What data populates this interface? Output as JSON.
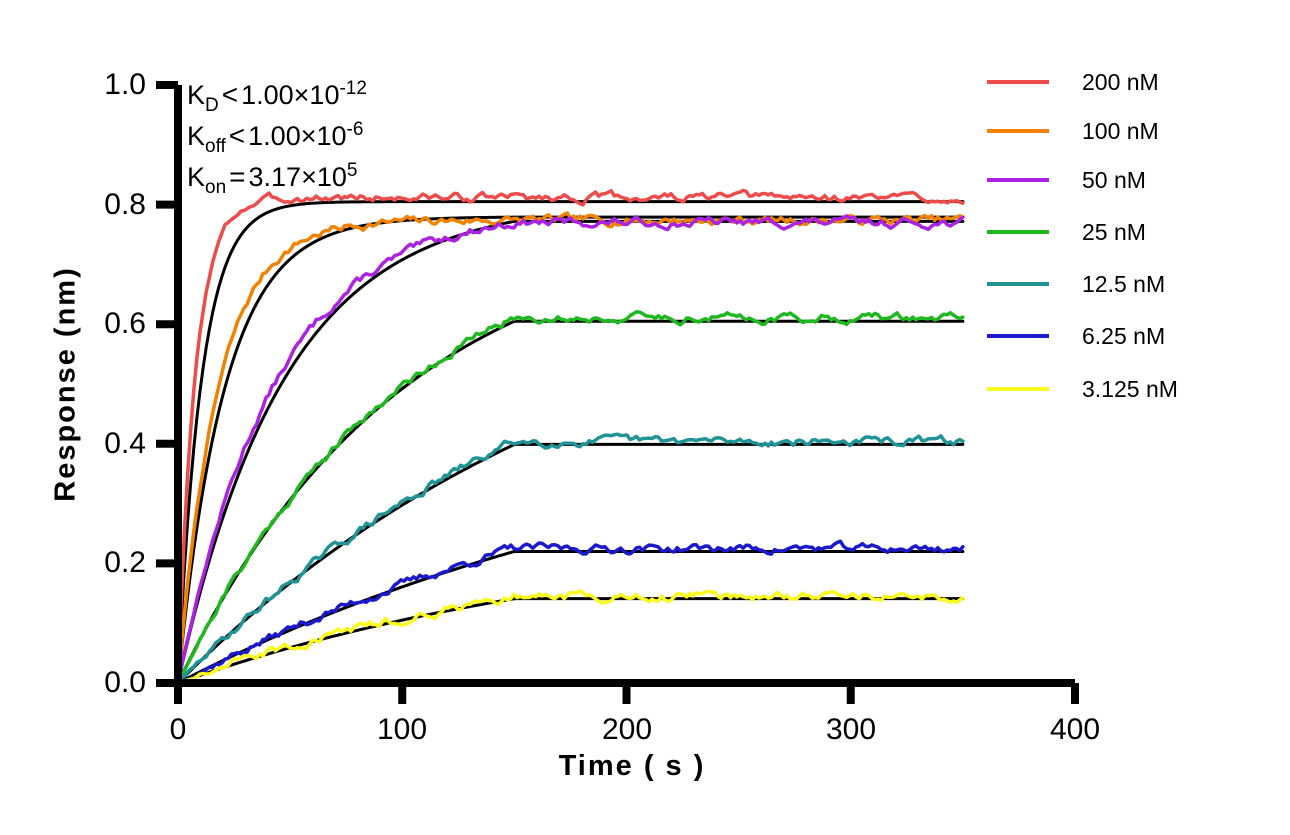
{
  "chart_data": {
    "type": "line",
    "title": "",
    "xlabel": "Time ( s )",
    "ylabel": "Response (nm)",
    "xlim": [
      0,
      400
    ],
    "ylim": [
      0.0,
      1.0
    ],
    "x_ticks": [
      0,
      100,
      200,
      300,
      400
    ],
    "x_tick_labels": [
      "0",
      "100",
      "200",
      "300",
      "400"
    ],
    "y_ticks": [
      1.0,
      0.8,
      0.6,
      0.4,
      0.2,
      0.0
    ],
    "y_tick_labels": [
      "1.0",
      "0.8",
      "0.6",
      "0.4",
      "0.2",
      "0.0"
    ],
    "grid": false,
    "legend_position": "right",
    "association_end_s": 150,
    "trace_end_s": 350,
    "fit_color": "#000000",
    "annotations": [
      {
        "base": "K",
        "sub": "D",
        "rel": "<",
        "mid": "1.00×10",
        "sup": "-12"
      },
      {
        "base": "K",
        "sub": "off",
        "rel": "<",
        "mid": "1.00×10",
        "sup": "-6"
      },
      {
        "base": "K",
        "sub": "on",
        "rel": "=",
        "mid": "3.17×10",
        "sup": "5"
      }
    ],
    "series": [
      {
        "name": "200 nM",
        "color": "#EE4B4B",
        "noise_seed": 3,
        "obs": {
          "k_obs": 0.13,
          "plateau_nm": 0.812
        },
        "fit": {
          "k_obs": 0.095,
          "plateau_nm": 0.805
        },
        "key_points": {
          "t_s": [
            25,
            50,
            75,
            100,
            125,
            150,
            350
          ],
          "response_nm": [
            0.73,
            0.798,
            0.804,
            0.805,
            0.805,
            0.805,
            0.805
          ]
        }
      },
      {
        "name": "100 nM",
        "color": "#F08200",
        "noise_seed": 7,
        "obs": {
          "k_obs": 0.056,
          "plateau_nm": 0.774
        },
        "fit": {
          "k_obs": 0.048,
          "plateau_nm": 0.779
        },
        "key_points": {
          "t_s": [
            25,
            50,
            75,
            100,
            125,
            150,
            350
          ],
          "response_nm": [
            0.545,
            0.709,
            0.758,
            0.773,
            0.777,
            0.779,
            0.779
          ]
        }
      },
      {
        "name": "50 nM",
        "color": "#AC22E2",
        "noise_seed": 13,
        "obs": {
          "k_obs": 0.023,
          "plateau_nm": 0.77
        },
        "fit": {
          "k_obs": 0.021,
          "plateau_nm": 0.772
        },
        "key_points": {
          "t_s": [
            25,
            50,
            75,
            100,
            125,
            150,
            350
          ],
          "response_nm": [
            0.329,
            0.524,
            0.64,
            0.708,
            0.748,
            0.772,
            0.772
          ]
        }
      },
      {
        "name": "25 nM",
        "color": "#1FB81F",
        "noise_seed": 21,
        "obs": {
          "k_obs": 0.01,
          "plateau_nm": 0.611
        },
        "fit": {
          "k_obs": 0.01,
          "plateau_nm": 0.605
        },
        "key_points": {
          "t_s": [
            25,
            50,
            75,
            100,
            125,
            150,
            350
          ],
          "response_nm": [
            0.172,
            0.306,
            0.411,
            0.492,
            0.556,
            0.605,
            0.605
          ]
        }
      },
      {
        "name": "12.5 nM",
        "color": "#1F9396",
        "noise_seed": 29,
        "obs": {
          "k_obs": 0.005,
          "plateau_nm": 0.404
        },
        "fit": {
          "k_obs": 0.005,
          "plateau_nm": 0.399
        },
        "key_points": {
          "t_s": [
            25,
            50,
            75,
            100,
            125,
            150,
            350
          ],
          "response_nm": [
            0.089,
            0.167,
            0.236,
            0.298,
            0.351,
            0.399,
            0.399
          ]
        }
      },
      {
        "name": "6.25 nM",
        "color": "#1A1ACC",
        "noise_seed": 37,
        "obs": {
          "k_obs": 0.004,
          "plateau_nm": 0.225
        },
        "fit": {
          "k_obs": 0.004,
          "plateau_nm": 0.22
        },
        "key_points": {
          "t_s": [
            25,
            50,
            75,
            100,
            125,
            150,
            350
          ],
          "response_nm": [
            0.046,
            0.088,
            0.126,
            0.161,
            0.192,
            0.22,
            0.22
          ]
        }
      },
      {
        "name": "3.125 nM",
        "color": "#FAFA1E",
        "noise_seed": 45,
        "obs": {
          "k_obs": 0.005,
          "plateau_nm": 0.145
        },
        "fit": {
          "k_obs": 0.005,
          "plateau_nm": 0.141
        },
        "key_points": {
          "t_s": [
            25,
            50,
            75,
            100,
            125,
            150,
            350
          ],
          "response_nm": [
            0.031,
            0.059,
            0.084,
            0.105,
            0.124,
            0.141,
            0.141
          ]
        }
      }
    ]
  }
}
